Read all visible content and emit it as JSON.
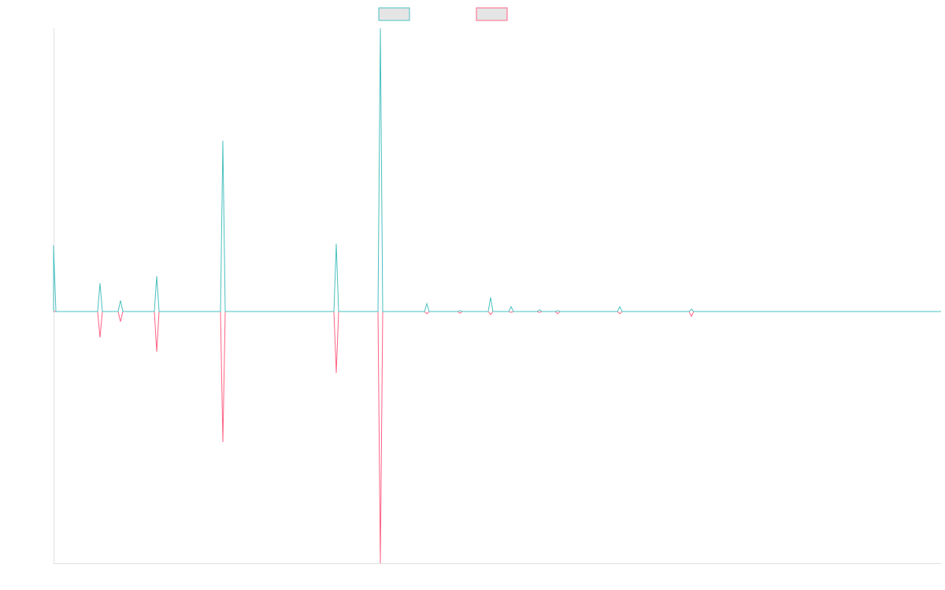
{
  "chart_data": {
    "type": "line",
    "title": "",
    "xlabel": "",
    "ylabel": "",
    "xlim": [
      0,
      1127
    ],
    "ylim": [
      -88.9,
      100
    ],
    "grid": false,
    "legend": "top-center",
    "series": [
      {
        "color": "#4bc0c0",
        "legend_fill": "#e5e5e5",
        "points": [
          [
            0,
            23.3
          ],
          [
            59,
            10
          ],
          [
            85,
            3.9
          ],
          [
            131,
            12.5
          ],
          [
            215,
            60.3
          ],
          [
            359,
            23.9
          ],
          [
            415,
            100
          ],
          [
            474,
            2.8
          ],
          [
            516,
            0.3
          ],
          [
            555,
            5
          ],
          [
            581,
            1.7
          ],
          [
            617,
            0.6
          ],
          [
            640,
            0.3
          ],
          [
            719,
            1.7
          ],
          [
            810,
            0.8
          ]
        ]
      },
      {
        "color": "#ff6384",
        "legend_fill": "#e5e5e5",
        "points": [
          [
            59,
            -9.2
          ],
          [
            85,
            -3.6
          ],
          [
            131,
            -14.2
          ],
          [
            215,
            -46.1
          ],
          [
            359,
            -21.7
          ],
          [
            415,
            -88.9
          ],
          [
            474,
            -0.8
          ],
          [
            516,
            -0.6
          ],
          [
            555,
            -1.1
          ],
          [
            581,
            -0.3
          ],
          [
            617,
            -0.3
          ],
          [
            640,
            -0.8
          ],
          [
            719,
            -0.8
          ],
          [
            810,
            -1.7
          ]
        ]
      }
    ]
  }
}
